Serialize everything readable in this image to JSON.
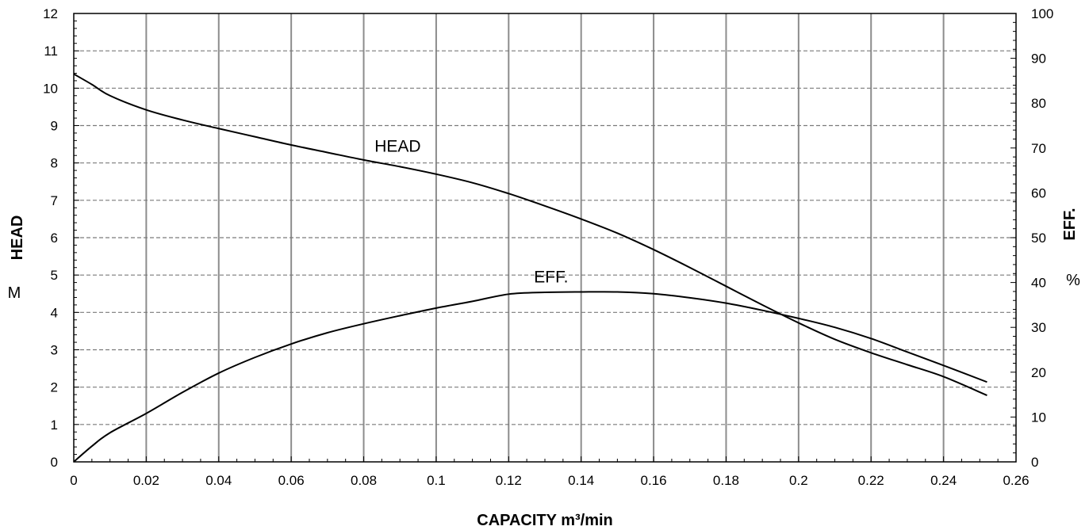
{
  "chart_data": {
    "type": "line",
    "xlabel": "CAPACITY m³/min",
    "ylabel": "HEAD",
    "ylabel_unit": "M",
    "y2label": "EFF.",
    "y2label_unit": "%",
    "xlim": [
      0,
      0.26
    ],
    "ylim": [
      0,
      12
    ],
    "y2lim": [
      0,
      100
    ],
    "x_ticks": [
      "0",
      "0.02",
      "0.04",
      "0.06",
      "0.08",
      "0.1",
      "0.12",
      "0.14",
      "0.16",
      "0.18",
      "0.2",
      "0.22",
      "0.24",
      "0.26"
    ],
    "y_ticks": [
      "0",
      "1",
      "2",
      "3",
      "4",
      "5",
      "6",
      "7",
      "8",
      "9",
      "10",
      "11",
      "12"
    ],
    "y2_ticks": [
      "0",
      "10",
      "20",
      "30",
      "40",
      "50",
      "60",
      "70",
      "80",
      "90",
      "100"
    ],
    "grid": true,
    "series": [
      {
        "name": "HEAD",
        "axis": "left",
        "x": [
          0,
          0.005,
          0.01,
          0.02,
          0.03,
          0.04,
          0.05,
          0.06,
          0.07,
          0.08,
          0.09,
          0.1,
          0.11,
          0.12,
          0.13,
          0.14,
          0.15,
          0.16,
          0.17,
          0.18,
          0.19,
          0.2,
          0.21,
          0.22,
          0.23,
          0.24,
          0.252
        ],
        "values": [
          10.38,
          10.1,
          9.8,
          9.42,
          9.15,
          8.92,
          8.7,
          8.48,
          8.28,
          8.08,
          7.9,
          7.7,
          7.47,
          7.18,
          6.85,
          6.5,
          6.12,
          5.68,
          5.2,
          4.7,
          4.2,
          3.72,
          3.28,
          2.92,
          2.6,
          2.28,
          1.78
        ]
      },
      {
        "name": "EFF.",
        "axis": "right",
        "x": [
          0,
          0.005,
          0.01,
          0.02,
          0.03,
          0.04,
          0.05,
          0.06,
          0.07,
          0.08,
          0.09,
          0.1,
          0.11,
          0.12,
          0.13,
          0.14,
          0.15,
          0.16,
          0.17,
          0.18,
          0.19,
          0.2,
          0.21,
          0.22,
          0.23,
          0.24,
          0.252
        ],
        "values": [
          0,
          3.5,
          6.5,
          10.8,
          15.5,
          19.8,
          23.3,
          26.3,
          28.8,
          30.8,
          32.6,
          34.3,
          35.8,
          37.4,
          37.8,
          37.9,
          37.9,
          37.5,
          36.6,
          35.4,
          33.8,
          32.0,
          30.0,
          27.5,
          24.5,
          21.5,
          17.8
        ]
      }
    ],
    "labels": [
      {
        "text": "HEAD",
        "series": "HEAD",
        "x": 0.083,
        "y": 8.3
      },
      {
        "text": "EFF.",
        "series": "EFF.",
        "x": 0.127,
        "y": 4.8
      }
    ]
  }
}
